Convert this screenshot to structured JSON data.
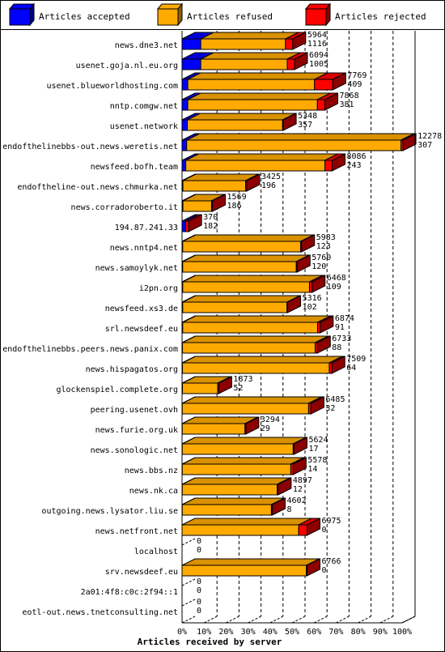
{
  "chart_data": {
    "type": "bar",
    "orientation": "horizontal",
    "stacked": true,
    "xlabel": "Articles received by server",
    "xlim": [
      0,
      100
    ],
    "x_unit": "%",
    "x_ticks": [
      "0%",
      "10%",
      "20%",
      "30%",
      "40%",
      "50%",
      "60%",
      "70%",
      "80%",
      "90%",
      "100%"
    ],
    "grid": "vertical dashed",
    "legend_position": "top",
    "categories": [
      "news.dne3.net",
      "usenet.goja.nl.eu.org",
      "usenet.blueworldhosting.com",
      "nntp.comgw.net",
      "usenet.network",
      "endofthelinebbs-out.news.weretis.net",
      "newsfeed.bofh.team",
      "endoftheline-out.news.chmurka.net",
      "news.corradoroberto.it",
      "194.87.241.33",
      "news.nntp4.net",
      "news.samoylyk.net",
      "i2pn.org",
      "newsfeed.xs3.de",
      "srl.newsdeef.eu",
      "endofthelinebbs.peers.news.panix.com",
      "news.hispagatos.org",
      "glockenspiel.complete.org",
      "peering.usenet.ovh",
      "news.furie.org.uk",
      "news.sonologic.net",
      "news.bbs.nz",
      "news.nk.ca",
      "outgoing.news.lysator.liu.se",
      "news.netfront.net",
      "localhost",
      "srv.newsdeef.eu",
      "2a01:4f8:c0c:2f94::1",
      "eotl-out.news.tnetconsulting.net"
    ],
    "series": [
      {
        "name": "Articles accepted",
        "color": "#0000ff",
        "values": [
          8.5,
          8.5,
          2.6,
          2.6,
          2.4,
          2.1,
          1.7,
          0.4,
          0.4,
          1.6,
          0.3,
          0.3,
          0.3,
          0.3,
          0.3,
          0.2,
          0.2,
          0.2,
          0.1,
          0.1,
          0.1,
          0.1,
          0.1,
          0.1,
          0,
          0,
          0,
          0,
          0
        ]
      },
      {
        "name": "Articles refused",
        "color": "#ffaa00",
        "values": [
          38.5,
          39.3,
          57.6,
          58.9,
          43.3,
          97.4,
          63.2,
          28.5,
          13.0,
          0.0,
          53.6,
          51.6,
          57.6,
          47.4,
          61.3,
          60.3,
          66.7,
          16.0,
          57.4,
          28.5,
          50.4,
          49.3,
          43.1,
          40.5,
          53.0,
          0,
          56.5,
          0,
          0
        ]
      },
      {
        "name": "Articles rejected",
        "color": "#ff0000",
        "values": [
          3.3,
          3.3,
          8.3,
          3.4,
          0.3,
          0.9,
          3.3,
          0.5,
          0.4,
          1.4,
          0.4,
          0.4,
          1.2,
          0.3,
          1.2,
          1.0,
          1.2,
          0.5,
          1.1,
          0.4,
          0.4,
          1.1,
          0.5,
          0.4,
          3.8,
          0,
          0.3,
          0,
          0
        ]
      }
    ],
    "labels_total": [
      "5964",
      "6094",
      "7769",
      "7868",
      "5348",
      "12278",
      "8086",
      "3425",
      "1569",
      "370",
      "5983",
      "5760",
      "6468",
      "5316",
      "6874",
      "6733",
      "7509",
      "1873",
      "6485",
      "3294",
      "5624",
      "5578",
      "4897",
      "4602",
      "6975",
      "0",
      "6766",
      "0",
      "0"
    ],
    "labels_accepted": [
      "1116",
      "1005",
      "409",
      "381",
      "357",
      "307",
      "243",
      "196",
      "186",
      "182",
      "123",
      "120",
      "109",
      "102",
      "91",
      "88",
      "64",
      "52",
      "32",
      "29",
      "17",
      "14",
      "12",
      "8",
      "0",
      "0",
      "0",
      "0",
      "0"
    ]
  }
}
